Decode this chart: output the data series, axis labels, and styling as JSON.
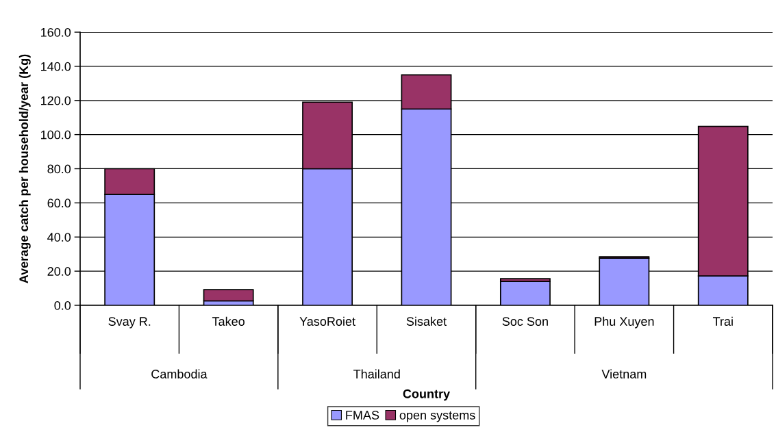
{
  "chart_data": {
    "type": "bar",
    "stacked": true,
    "xlabel": "Country",
    "ylabel": "Average catch per household/year (Kg)",
    "categories": [
      "Svay R.",
      "Takeo",
      "YasoRoiet",
      "Sisaket",
      "Soc Son",
      "Phu Xuyen",
      "Trai"
    ],
    "series": [
      {
        "name": "FMAS",
        "color": "#9999ff",
        "values": [
          65,
          2.6,
          80,
          115,
          14,
          27.6,
          17.2
        ]
      },
      {
        "name": "open systems",
        "color": "#993366",
        "values": [
          15,
          6.6,
          39,
          20,
          1.6,
          0.8,
          87.6
        ]
      }
    ],
    "annotations": [
      "Cambodia",
      "Thailand",
      "Vietnam"
    ],
    "ylim": [
      0,
      160
    ],
    "yticks": [
      {
        "value": 0,
        "label": "0.0"
      },
      {
        "value": 20,
        "label": "20.0"
      },
      {
        "value": 40,
        "label": "40.0"
      },
      {
        "value": 60,
        "label": "60.0"
      },
      {
        "value": 80,
        "label": "80.0"
      },
      {
        "value": 100,
        "label": "100.0"
      },
      {
        "value": 120,
        "label": "120.0"
      },
      {
        "value": 140,
        "label": "140.0"
      },
      {
        "value": 160,
        "label": "160.0"
      }
    ],
    "grid": "y",
    "legend": "bottom"
  }
}
